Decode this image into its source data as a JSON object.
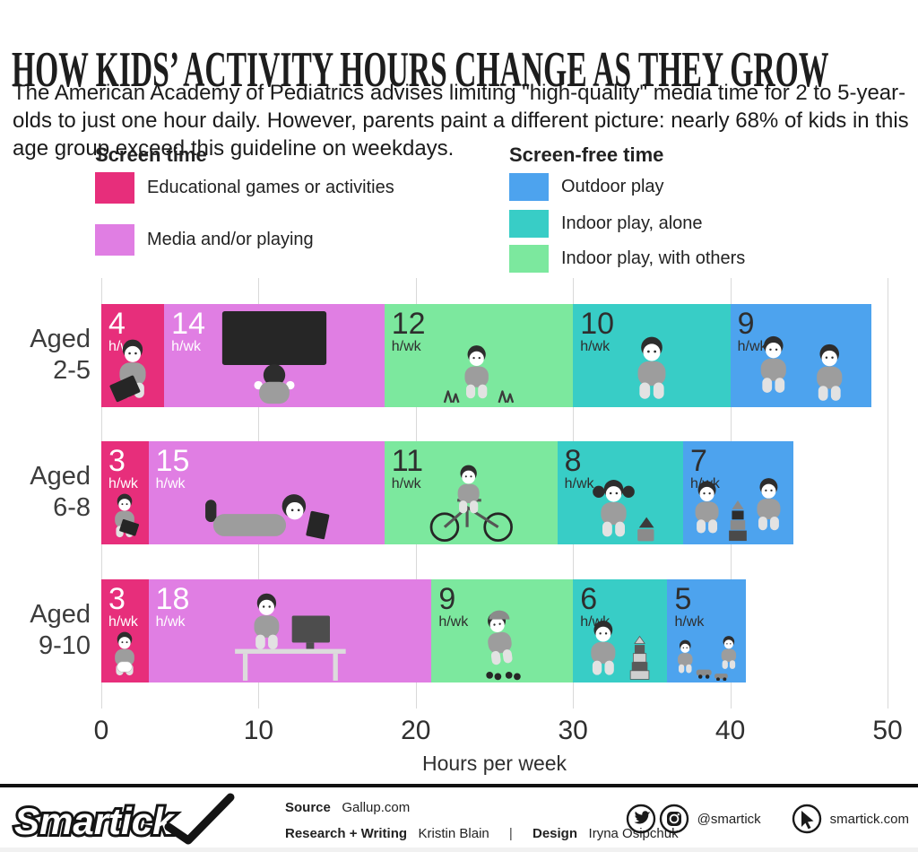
{
  "header": {
    "title": "HOW KIDS’ ACTIVITY HOURS CHANGE AS THEY GROW",
    "subtitle": "The American Academy of Pediatrics advises limiting \"high-quality\" media time for 2 to 5-year-olds to just one hour daily. However, parents paint a different picture: nearly 68% of kids in this age group exceed this guideline on weekdays."
  },
  "legend": {
    "screen_time": {
      "title": "Screen time",
      "items": [
        {
          "label": "Educational games or activities",
          "color": "#e72e7b"
        },
        {
          "label": "Media and/or playing",
          "color": "#e07ee3"
        }
      ]
    },
    "screen_free": {
      "title": "Screen-free time",
      "items": [
        {
          "label": "Outdoor play",
          "color": "#4da3ee"
        },
        {
          "label": "Indoor play, alone",
          "color": "#38cdc6"
        },
        {
          "label": "Indoor play, with others",
          "color": "#7ce89e"
        }
      ]
    }
  },
  "chart_data": {
    "type": "bar",
    "orientation": "horizontal",
    "stacked": true,
    "categories": [
      "Aged 2-5",
      "Aged 6-8",
      "Aged 9-10"
    ],
    "category_lines": [
      [
        "Aged",
        "2-5"
      ],
      [
        "Aged",
        "6-8"
      ],
      [
        "Aged",
        "9-10"
      ]
    ],
    "series": [
      {
        "name": "Educational games or activities",
        "group": "Screen time",
        "color": "#e72e7b",
        "values": [
          4,
          3,
          3
        ]
      },
      {
        "name": "Media and/or playing",
        "group": "Screen time",
        "color": "#e07ee3",
        "values": [
          14,
          15,
          18
        ]
      },
      {
        "name": "Indoor play, with others",
        "group": "Screen-free time",
        "color": "#7ce89e",
        "values": [
          12,
          11,
          9
        ]
      },
      {
        "name": "Indoor play, alone",
        "group": "Screen-free time",
        "color": "#38cdc6",
        "values": [
          10,
          8,
          6
        ]
      },
      {
        "name": "Outdoor play",
        "group": "Screen-free time",
        "color": "#4da3ee",
        "values": [
          9,
          7,
          5
        ]
      }
    ],
    "value_suffix": "h/wk",
    "value_label_colors": [
      "#ffffff",
      "#ffffff",
      "#2e2e2e",
      "#2e2e2e",
      "#2e2e2e"
    ],
    "xlabel": "Hours per week",
    "xticks": [
      0,
      10,
      20,
      30,
      40,
      50
    ],
    "xlim": [
      0,
      50
    ],
    "grid": true,
    "legend_position": "top",
    "icons": [
      [
        "toddler-reading",
        "toddler-watching-tv",
        "toddler-in-grass",
        "toddler-sitting",
        "toddlers-playing-together"
      ],
      [
        "kid-reading-tablet",
        "kid-lying-with-tablet",
        "kid-riding-bike",
        "girl-playing-blocks",
        "kids-building-blocks"
      ],
      [
        "boy-sitting-device",
        "boy-at-computer-desk",
        "kid-roller-skating",
        "kid-stacking-tower",
        "kids-playing-toy-cars"
      ]
    ]
  },
  "footer": {
    "logo_text": "Smartick",
    "source_label": "Source",
    "source_value": "Gallup.com",
    "research_label": "Research + Writing",
    "research_value": "Kristin Blain",
    "separator": "|",
    "design_label": "Design",
    "design_value": "Iryna Osipchuk",
    "social_handle": "@smartick",
    "website": "smartick.com"
  }
}
